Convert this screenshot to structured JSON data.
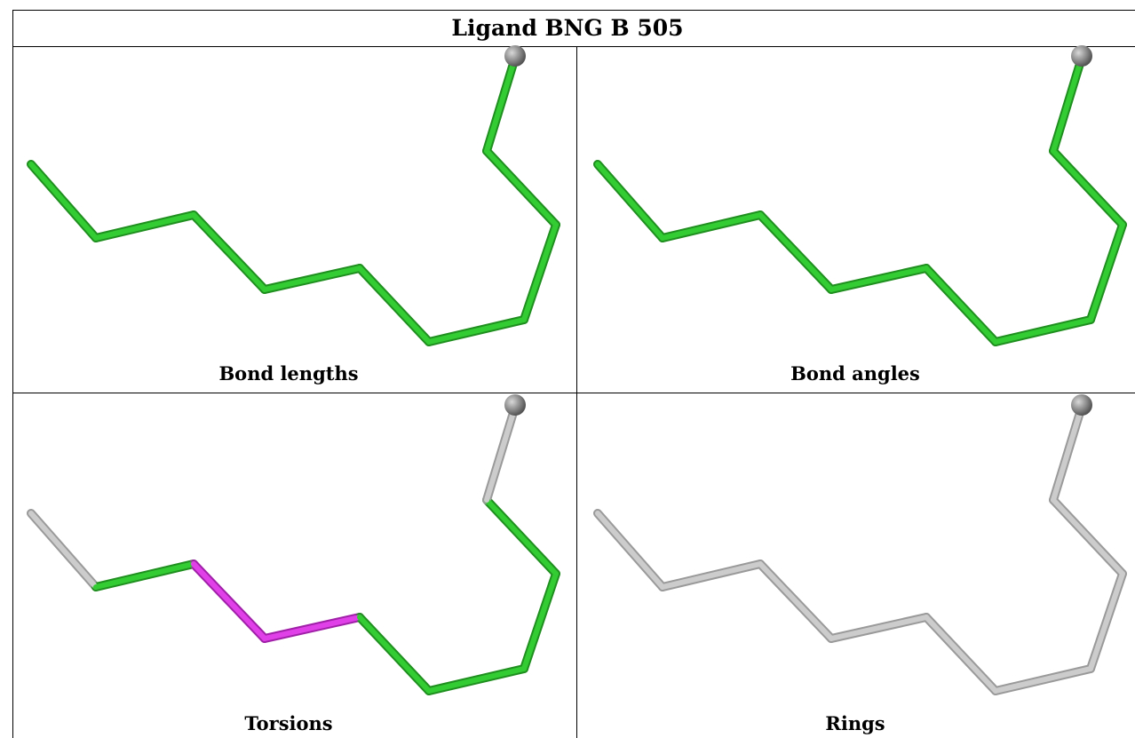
{
  "title": "Ligand BNG B 505",
  "panels": [
    {
      "caption": "Bond lengths",
      "coloring": "all-bonds-green"
    },
    {
      "caption": "Bond angles",
      "coloring": "all-bonds-green"
    },
    {
      "caption": "Torsions",
      "coloring": "torsion-highlight"
    },
    {
      "caption": "Rings",
      "coloring": "all-bonds-gray"
    }
  ],
  "colors": {
    "green": "#33cc33",
    "green_dark": "#1f8f1f",
    "gray": "#cccccc",
    "gray_dark": "#9a9a9a",
    "magenta": "#e040e8",
    "magenta_dark": "#a020a8",
    "sphere": "#8a8a8a"
  }
}
